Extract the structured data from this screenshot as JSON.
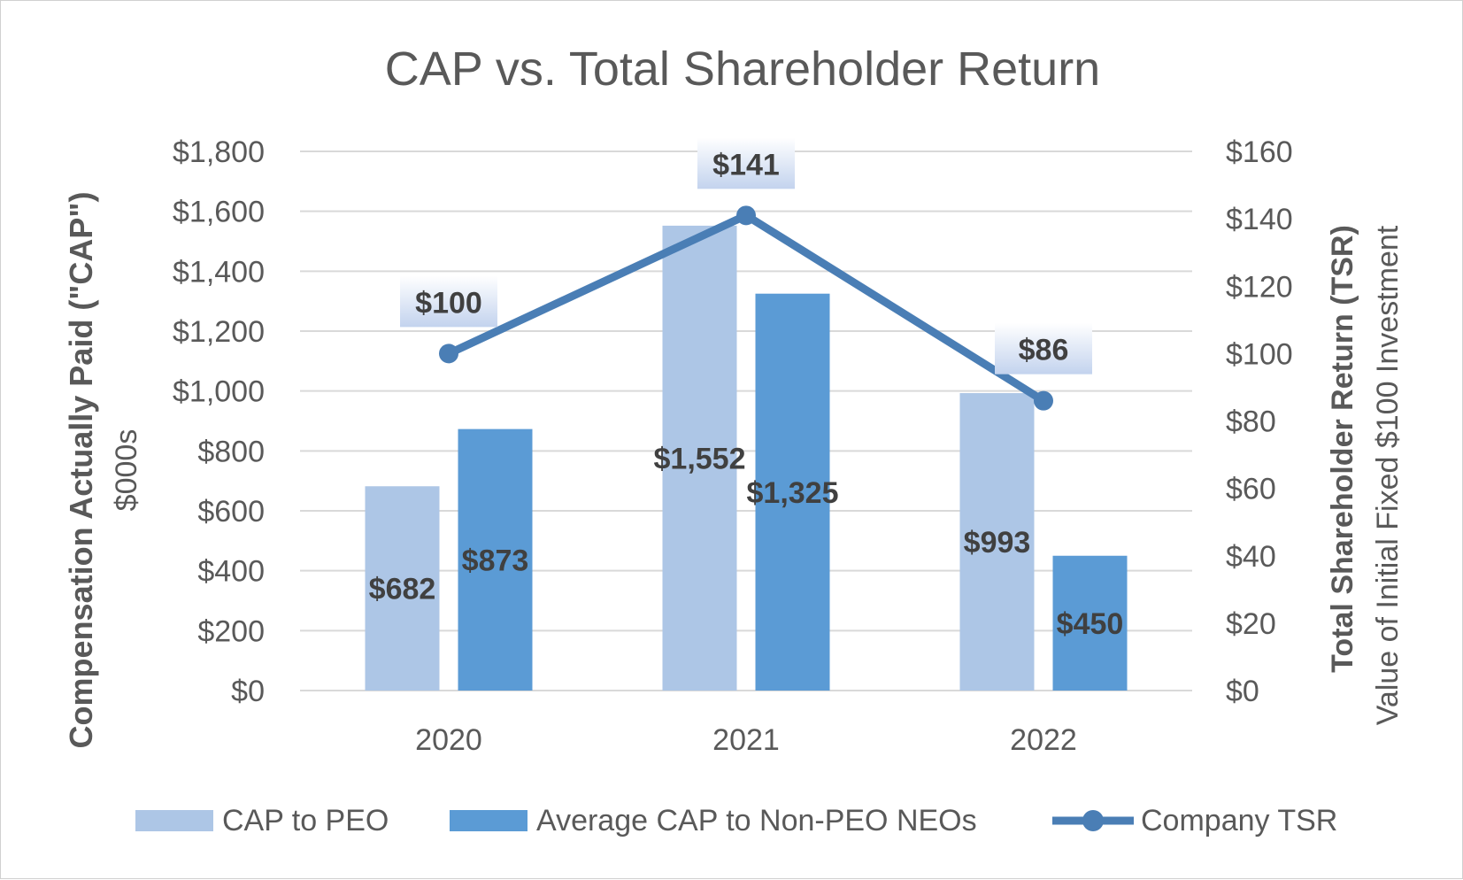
{
  "chart_data": {
    "type": "bar",
    "title": "CAP vs. Total Shareholder Return",
    "categories": [
      "2020",
      "2021",
      "2022"
    ],
    "y_left": {
      "label": "Compensation Actually Paid (\"CAP\")",
      "sublabel": "$000s",
      "min": 0,
      "max": 1800,
      "step": 200,
      "tick_labels": [
        "$0",
        "$200",
        "$400",
        "$600",
        "$800",
        "$1,000",
        "$1,200",
        "$1,400",
        "$1,600",
        "$1,800"
      ]
    },
    "y_right": {
      "label": "Total Shareholder Return (TSR)",
      "sublabel": "Value of Initial Fixed $100 Investment",
      "min": 0,
      "max": 160,
      "step": 20,
      "tick_labels": [
        "$0",
        "$20",
        "$40",
        "$60",
        "$80",
        "$100",
        "$120",
        "$140",
        "$160"
      ]
    },
    "series": [
      {
        "name": "CAP to PEO",
        "type": "bar",
        "axis": "left",
        "color": "#adc6e6",
        "values": [
          682,
          1552,
          993
        ],
        "labels": [
          "$682",
          "$1,552",
          "$993"
        ]
      },
      {
        "name": "Average CAP to Non-PEO NEOs",
        "type": "bar",
        "axis": "left",
        "color": "#5b9bd5",
        "values": [
          873,
          1325,
          450
        ],
        "labels": [
          "$873",
          "$1,325",
          "$450"
        ]
      },
      {
        "name": "Company TSR",
        "type": "line",
        "axis": "right",
        "color": "#4a7eb5",
        "values": [
          100,
          141,
          86
        ],
        "labels": [
          "$100",
          "$141",
          "$86"
        ]
      }
    ],
    "legend_position": "bottom",
    "grid": true
  }
}
